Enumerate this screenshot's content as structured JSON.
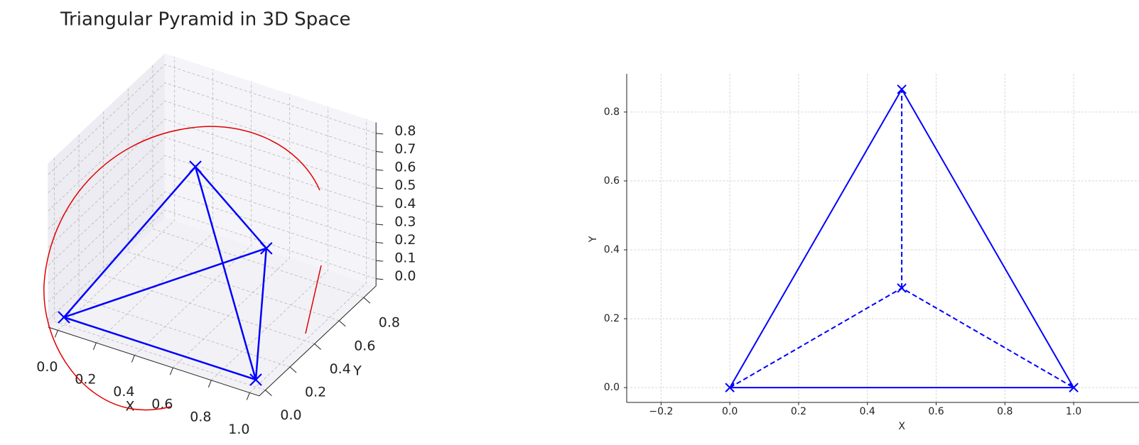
{
  "chart_data": [
    {
      "type": "line3d",
      "title": "Triangular Pyramid in 3D Space",
      "xlabel": "X",
      "ylabel": "Y",
      "xlim": [
        -0.05,
        1.05
      ],
      "ylim": [
        -0.05,
        0.9
      ],
      "zlim": [
        -0.04,
        0.86
      ],
      "xticks": [
        {
          "value": 0,
          "label": "0.0"
        },
        0.2,
        0.4,
        0.6,
        0.8,
        {
          "value": 1,
          "label": "1.0"
        }
      ],
      "yticks": [
        {
          "value": 0,
          "label": "0.0"
        },
        0.2,
        0.4,
        0.6,
        0.8
      ],
      "zticks": [
        {
          "value": 0,
          "label": "0.0"
        },
        0.1,
        0.2,
        0.3,
        0.4,
        0.5,
        0.6,
        0.7,
        0.8
      ],
      "grid": true,
      "series": [
        {
          "color": "#0000ff",
          "linestyle": "solid",
          "x": [
            0,
            1,
            0.5,
            0,
            0.5,
            1,
            null,
            0.5,
            0.5
          ],
          "y": [
            0,
            0,
            0.866,
            0,
            0.289,
            0,
            null,
            0.289,
            0.866
          ],
          "z": [
            0,
            0,
            0,
            0,
            0.816,
            0,
            null,
            0.816,
            0
          ]
        },
        {
          "color": "#0000ff",
          "linestyle": "none",
          "marker": "x",
          "x": [
            0,
            1,
            0.5,
            0.5
          ],
          "y": [
            0,
            0,
            0.866,
            0.289
          ],
          "z": [
            0,
            0,
            0,
            0.816
          ]
        }
      ]
    },
    {
      "type": "line",
      "xlabel": "X",
      "ylabel": "Y",
      "xlim": [
        -0.3,
        1.19
      ],
      "ylim": [
        -0.043,
        0.911
      ],
      "xticks": [
        {
          "value": -0.2,
          "label": "−0.2"
        },
        {
          "value": 0,
          "label": "0.0"
        },
        0.2,
        0.4,
        0.6,
        0.8,
        {
          "value": 1,
          "label": "1.0"
        }
      ],
      "yticks": [
        {
          "value": 0,
          "label": "0.0"
        },
        0.2,
        0.4,
        0.6,
        0.8
      ],
      "grid": true,
      "series": [
        {
          "color": "#0000ff",
          "linestyle": "solid",
          "x": [
            0,
            1,
            0.5,
            0
          ],
          "y": [
            0,
            0,
            0.866,
            0
          ]
        },
        {
          "color": "#0000ff",
          "linestyle": "dashed",
          "x": [
            0,
            0.5,
            1,
            null,
            0.5,
            0.5
          ],
          "y": [
            0,
            0.289,
            0,
            null,
            0.289,
            0.866
          ]
        },
        {
          "color": "#0000ff",
          "linestyle": "none",
          "marker": "x",
          "x": [
            0,
            1,
            0.5,
            0.5
          ],
          "y": [
            0,
            0,
            0.866,
            0.289
          ]
        }
      ]
    }
  ]
}
